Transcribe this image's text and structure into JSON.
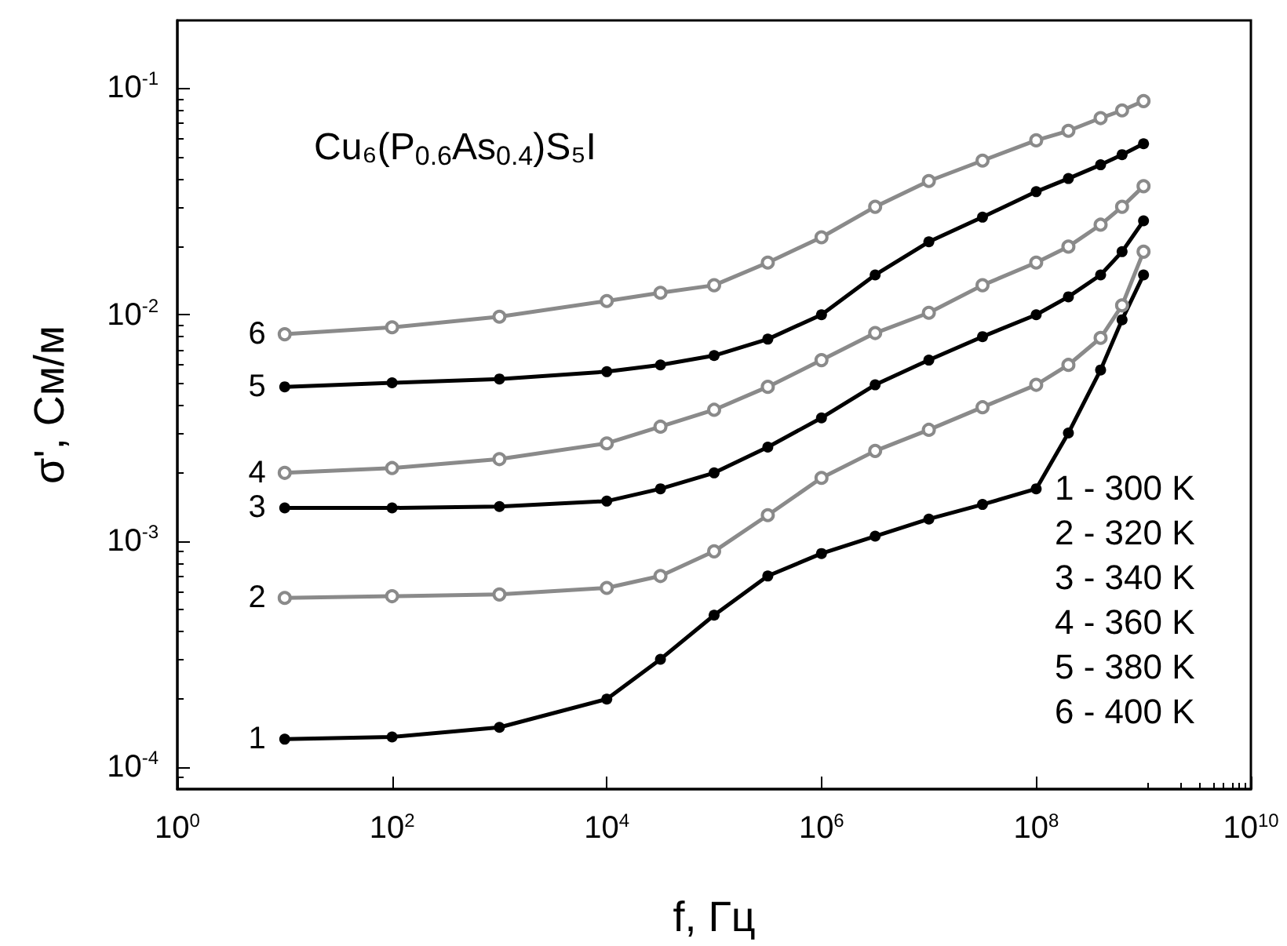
{
  "chart_data": {
    "type": "line",
    "title": "Cu₆(P$_{0.6}$As$_{0.4}$)S₅I",
    "xlabel": "f, Гц",
    "ylabel": "σ', См/м",
    "log": "xy",
    "grid": false,
    "marker": "circle",
    "xlim": [
      1,
      10000000000
    ],
    "ylim": [
      8e-05,
      0.2
    ],
    "xticks": [
      {
        "value": 1,
        "label": "10$^{0}$"
      },
      {
        "value": 100,
        "label": "10$^{2}$"
      },
      {
        "value": 10000,
        "label": "10$^{4}$"
      },
      {
        "value": 1000000,
        "label": "10$^{6}$"
      },
      {
        "value": 100000000,
        "label": "10$^{8}$"
      },
      {
        "value": 10000000000,
        "label": "10$^{10}$"
      }
    ],
    "yticks": [
      {
        "value": 0.0001,
        "label": "10$^{-4}$"
      },
      {
        "value": 0.001,
        "label": "10$^{-3}$"
      },
      {
        "value": 0.01,
        "label": "10$^{-2}$"
      },
      {
        "value": 0.1,
        "label": "10$^{-1}$"
      }
    ],
    "x": [
      10,
      100,
      1000,
      10000,
      31623,
      100000,
      316228,
      1000000,
      3162278,
      10000000,
      31622777,
      100000000,
      199526231,
      398107171,
      630957344,
      1000000000
    ],
    "series": [
      {
        "name": "1",
        "color": "#000000",
        "values": [
          0.000133,
          0.000136,
          0.00015,
          0.0002,
          0.0003,
          0.00047,
          0.0007,
          0.00088,
          0.00105,
          0.00125,
          0.00145,
          0.0017,
          0.003,
          0.0057,
          0.0095,
          0.015
        ]
      },
      {
        "name": "2",
        "color": "#8a8a8a",
        "values": [
          0.00056,
          0.00057,
          0.00058,
          0.00062,
          0.0007,
          0.0009,
          0.0013,
          0.0019,
          0.0025,
          0.0031,
          0.0039,
          0.0049,
          0.006,
          0.0079,
          0.011,
          0.019
        ]
      },
      {
        "name": "3",
        "color": "#000000",
        "values": [
          0.0014,
          0.0014,
          0.00142,
          0.0015,
          0.0017,
          0.002,
          0.0026,
          0.0035,
          0.0049,
          0.0063,
          0.008,
          0.01,
          0.012,
          0.015,
          0.019,
          0.026
        ]
      },
      {
        "name": "4",
        "color": "#8a8a8a",
        "values": [
          0.002,
          0.0021,
          0.0023,
          0.0027,
          0.0032,
          0.0038,
          0.0048,
          0.0063,
          0.0083,
          0.0102,
          0.0135,
          0.017,
          0.02,
          0.025,
          0.03,
          0.037
        ]
      },
      {
        "name": "5",
        "color": "#000000",
        "values": [
          0.0048,
          0.005,
          0.0052,
          0.0056,
          0.006,
          0.0066,
          0.0078,
          0.01,
          0.015,
          0.021,
          0.027,
          0.035,
          0.04,
          0.046,
          0.051,
          0.057
        ]
      },
      {
        "name": "6",
        "color": "#8a8a8a",
        "values": [
          0.0082,
          0.0088,
          0.0098,
          0.0115,
          0.0125,
          0.0135,
          0.017,
          0.022,
          0.03,
          0.039,
          0.048,
          0.059,
          0.065,
          0.074,
          0.08,
          0.088
        ]
      }
    ],
    "annotations": [
      "1 - 300 K",
      "2 - 320 K",
      "3 - 340 K",
      "4 - 360 K",
      "5 - 380 K",
      "6 - 400 K"
    ]
  }
}
